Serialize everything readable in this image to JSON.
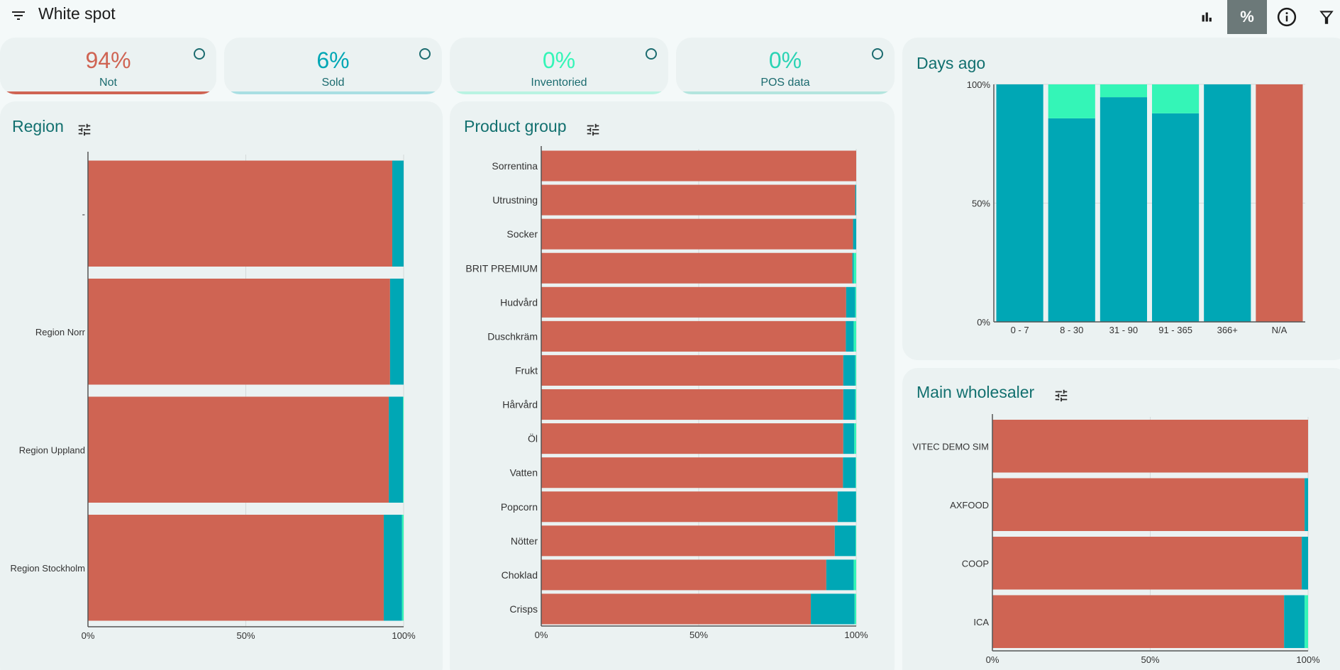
{
  "app": {
    "title": "White spot",
    "toolbar": {
      "bar_chart": "bar-chart-icon",
      "percent": "%",
      "info": "info-icon",
      "filter": "filter-icon"
    }
  },
  "colors": {
    "not": "#cf6453",
    "sold": "#00a7b5",
    "inventoried": "#34f5b7",
    "pos": "#2ad3b4",
    "title": "#12706f"
  },
  "kpis": [
    {
      "value": "94%",
      "label": "Not",
      "color": "#cf6453",
      "bar": "#cf6453"
    },
    {
      "value": "6%",
      "label": "Sold",
      "color": "#00a7b5",
      "bar": "#a9dfe3"
    },
    {
      "value": "0%",
      "label": "Inventoried",
      "color": "#34f5b7",
      "bar": "#b9f3e2"
    },
    {
      "value": "0%",
      "label": "POS data",
      "color": "#2ad3b4",
      "bar": "#b3e5de"
    }
  ],
  "panels": {
    "region": {
      "title": "Region"
    },
    "product_group": {
      "title": "Product group"
    },
    "days_ago": {
      "title": "Days ago"
    },
    "main_wholesaler": {
      "title": "Main wholesaler"
    }
  },
  "chart_data": [
    {
      "id": "region",
      "type": "bar",
      "orientation": "horizontal",
      "stacked": true,
      "title": "Region",
      "categories": [
        "-",
        "Region Norr",
        "Region Uppland",
        "Region Stockholm"
      ],
      "series": [
        {
          "name": "Not",
          "values": [
            96.4,
            95.7,
            95.3,
            93.7
          ]
        },
        {
          "name": "Sold",
          "values": [
            3.6,
            4.3,
            4.5,
            5.8
          ]
        },
        {
          "name": "Inventoried",
          "values": [
            0,
            0,
            0.2,
            0.5
          ]
        }
      ],
      "xticks": [
        "0%",
        "50%",
        "100%"
      ],
      "xlim": [
        0,
        100
      ],
      "grid": true
    },
    {
      "id": "product_group",
      "type": "bar",
      "orientation": "horizontal",
      "stacked": true,
      "title": "Product group",
      "categories": [
        "Sorrentina",
        "Utrustning",
        "Socker",
        "BRIT PREMIUM",
        "Hudvård",
        "Duschkräm",
        "Frukt",
        "Hårvård",
        "Öl",
        "Vatten",
        "Popcorn",
        "Nötter",
        "Choklad",
        "Crisps"
      ],
      "series": [
        {
          "name": "Not",
          "values": [
            100,
            99.7,
            99.0,
            98.8,
            96.8,
            96.7,
            95.9,
            95.9,
            95.9,
            95.8,
            94.1,
            93.2,
            90.5,
            85.6
          ]
        },
        {
          "name": "Sold",
          "values": [
            0,
            0.3,
            1.0,
            0.4,
            2.9,
            2.5,
            3.8,
            3.8,
            3.5,
            4.0,
            5.8,
            6.6,
            8.7,
            13.9
          ]
        },
        {
          "name": "Inventoried",
          "values": [
            0,
            0,
            0,
            0.8,
            0.3,
            0.8,
            0.3,
            0.3,
            0.6,
            0.2,
            0.1,
            0.2,
            0.8,
            0.5
          ]
        }
      ],
      "xticks": [
        "0%",
        "50%",
        "100%"
      ],
      "xlim": [
        0,
        100
      ],
      "grid": true
    },
    {
      "id": "days_ago",
      "type": "bar",
      "orientation": "vertical",
      "stacked": true,
      "title": "Days ago",
      "categories": [
        "0 - 7",
        "8 - 30",
        "31 - 90",
        "91 - 365",
        "366+",
        "N/A"
      ],
      "series": [
        {
          "name": "Not",
          "values": [
            0,
            0,
            0,
            0,
            0,
            100
          ]
        },
        {
          "name": "Sold",
          "values": [
            100,
            85.7,
            94.6,
            87.8,
            100,
            0
          ]
        },
        {
          "name": "Inventoried",
          "values": [
            0,
            14.3,
            5.4,
            12.2,
            0,
            0
          ]
        }
      ],
      "yticks": [
        "0%",
        "50%",
        "100%"
      ],
      "ylim": [
        0,
        100
      ],
      "grid": true
    },
    {
      "id": "main_wholesaler",
      "type": "bar",
      "orientation": "horizontal",
      "stacked": true,
      "title": "Main wholesaler",
      "categories": [
        "VITEC DEMO SIM",
        "AXFOOD",
        "COOP",
        "ICA"
      ],
      "series": [
        {
          "name": "Not",
          "values": [
            100,
            98.9,
            98.0,
            92.4
          ]
        },
        {
          "name": "Sold",
          "values": [
            0,
            1.1,
            2.0,
            6.5
          ]
        },
        {
          "name": "Inventoried",
          "values": [
            0,
            0,
            0,
            1.1
          ]
        }
      ],
      "xticks": [
        "0%",
        "50%",
        "100%"
      ],
      "xlim": [
        0,
        100
      ],
      "grid": true
    }
  ]
}
